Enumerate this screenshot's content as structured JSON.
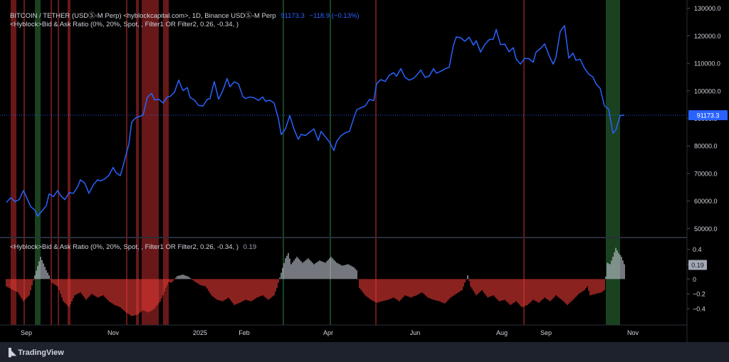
{
  "legend": {
    "main_title": "BITCOIN / TETHER (USDⓈ-M Perp) <hyblockcapital.com>, 1D, Binance USDⓈ-M Perp",
    "main_close": "91173.3",
    "main_change": "−118.9 (−0.13%)",
    "overlay_label": "<Hyblock>Bid & Ask Ratio (0%, 20%, Spot, , Filter1 OR Filter2, 0.26, -0.34, )",
    "indicator_label": "<Hyblock>Bid & Ask Ratio (0%, 20%, Spot, , Filter1 OR Filter2, 0.26, -0.34, )",
    "indicator_value": "0.19"
  },
  "footer": {
    "brand": "TradingView"
  },
  "colors": {
    "price_line": "#2962ff",
    "positive_bar": "#c2c6d0",
    "negative_bar": "#e53935",
    "red_zone": "#7a1c1c",
    "green_zone": "#1f4d26",
    "background": "#000000",
    "axis_text": "#d1d4dc"
  },
  "chart_data": [
    {
      "type": "line",
      "name": "BITCOIN / TETHER (USDⓈ-M Perp)",
      "ylim": [
        47000,
        133000
      ],
      "y_ticks": [
        50000,
        60000,
        70000,
        80000,
        90000,
        100000,
        110000,
        120000,
        130000
      ],
      "y_tick_labels": [
        "50000.0",
        "60000.0",
        "70000.0",
        "80000.0",
        "90000.0",
        "100000.0",
        "110000.0",
        "120000.0",
        "130000.0"
      ],
      "x_ticks": [
        {
          "label": "Sep",
          "day": 14
        },
        {
          "label": "Nov",
          "day": 75
        },
        {
          "label": "2025",
          "day": 136
        },
        {
          "label": "Feb",
          "day": 167
        },
        {
          "label": "Apr",
          "day": 226
        },
        {
          "label": "Jun",
          "day": 287
        },
        {
          "label": "Aug",
          "day": 348
        },
        {
          "label": "Sep",
          "day": 379
        },
        {
          "label": "Nov",
          "day": 440
        }
      ],
      "x_range_days": [
        0,
        479
      ],
      "last_value": 91173.3,
      "last_value_label": "91173.3",
      "price_points": [
        [
          0,
          59500
        ],
        [
          3,
          61200
        ],
        [
          6,
          59800
        ],
        [
          9,
          60500
        ],
        [
          12,
          63800
        ],
        [
          14,
          61500
        ],
        [
          17,
          58000
        ],
        [
          20,
          56700
        ],
        [
          22,
          54500
        ],
        [
          25,
          56400
        ],
        [
          28,
          58300
        ],
        [
          30,
          62600
        ],
        [
          33,
          61600
        ],
        [
          36,
          63800
        ],
        [
          38,
          62000
        ],
        [
          41,
          60500
        ],
        [
          44,
          63000
        ],
        [
          47,
          62800
        ],
        [
          50,
          65100
        ],
        [
          52,
          67700
        ],
        [
          55,
          66500
        ],
        [
          58,
          62800
        ],
        [
          61,
          65800
        ],
        [
          64,
          67700
        ],
        [
          66,
          67300
        ],
        [
          69,
          68000
        ],
        [
          72,
          69400
        ],
        [
          75,
          72200
        ],
        [
          77,
          70300
        ],
        [
          80,
          69200
        ],
        [
          83,
          74800
        ],
        [
          86,
          80600
        ],
        [
          88,
          88700
        ],
        [
          91,
          90300
        ],
        [
          93,
          90600
        ],
        [
          96,
          91200
        ],
        [
          99,
          97700
        ],
        [
          102,
          99100
        ],
        [
          104,
          96700
        ],
        [
          107,
          97000
        ],
        [
          110,
          95600
        ],
        [
          113,
          97800
        ],
        [
          115,
          98000
        ],
        [
          118,
          99500
        ],
        [
          121,
          103900
        ],
        [
          124,
          100100
        ],
        [
          127,
          101200
        ],
        [
          129,
          97600
        ],
        [
          132,
          96700
        ],
        [
          135,
          94700
        ],
        [
          138,
          94500
        ],
        [
          141,
          96900
        ],
        [
          143,
          97200
        ],
        [
          146,
          103400
        ],
        [
          149,
          97000
        ],
        [
          152,
          100100
        ],
        [
          155,
          104500
        ],
        [
          157,
          101500
        ],
        [
          160,
          103300
        ],
        [
          163,
          102500
        ],
        [
          166,
          98000
        ],
        [
          168,
          97200
        ],
        [
          171,
          97800
        ],
        [
          174,
          97500
        ],
        [
          177,
          96500
        ],
        [
          180,
          97800
        ],
        [
          182,
          96200
        ],
        [
          185,
          96600
        ],
        [
          188,
          95600
        ],
        [
          191,
          90000
        ],
        [
          193,
          84100
        ],
        [
          196,
          86200
        ],
        [
          199,
          91000
        ],
        [
          202,
          86100
        ],
        [
          205,
          82400
        ],
        [
          207,
          84200
        ],
        [
          210,
          83800
        ],
        [
          213,
          85000
        ],
        [
          216,
          86200
        ],
        [
          219,
          82000
        ],
        [
          221,
          85300
        ],
        [
          224,
          83300
        ],
        [
          227,
          81400
        ],
        [
          230,
          78300
        ],
        [
          232,
          81700
        ],
        [
          235,
          83700
        ],
        [
          238,
          84800
        ],
        [
          241,
          85300
        ],
        [
          244,
          90200
        ],
        [
          246,
          93100
        ],
        [
          249,
          93900
        ],
        [
          252,
          94500
        ],
        [
          255,
          96900
        ],
        [
          258,
          96400
        ],
        [
          260,
          102600
        ],
        [
          263,
          104100
        ],
        [
          266,
          103400
        ],
        [
          269,
          105700
        ],
        [
          272,
          106600
        ],
        [
          274,
          105300
        ],
        [
          277,
          108100
        ],
        [
          280,
          104900
        ],
        [
          283,
          103900
        ],
        [
          286,
          104600
        ],
        [
          288,
          105600
        ],
        [
          291,
          107600
        ],
        [
          294,
          104900
        ],
        [
          297,
          105400
        ],
        [
          300,
          108100
        ],
        [
          302,
          106400
        ],
        [
          305,
          107100
        ],
        [
          308,
          108000
        ],
        [
          311,
          108600
        ],
        [
          314,
          116700
        ],
        [
          316,
          119600
        ],
        [
          319,
          119300
        ],
        [
          322,
          118000
        ],
        [
          325,
          119500
        ],
        [
          328,
          116600
        ],
        [
          330,
          118200
        ],
        [
          333,
          114100
        ],
        [
          336,
          116800
        ],
        [
          339,
          118600
        ],
        [
          342,
          118800
        ],
        [
          344,
          122300
        ],
        [
          347,
          116800
        ],
        [
          350,
          117000
        ],
        [
          353,
          114200
        ],
        [
          356,
          115700
        ],
        [
          358,
          111600
        ],
        [
          361,
          109700
        ],
        [
          364,
          111800
        ],
        [
          367,
          111700
        ],
        [
          370,
          110400
        ],
        [
          372,
          114100
        ],
        [
          375,
          115300
        ],
        [
          378,
          117100
        ],
        [
          381,
          113000
        ],
        [
          384,
          109700
        ],
        [
          386,
          112300
        ],
        [
          389,
          121700
        ],
        [
          392,
          123700
        ],
        [
          395,
          111900
        ],
        [
          398,
          113700
        ],
        [
          400,
          111100
        ],
        [
          403,
          111500
        ],
        [
          406,
          108200
        ],
        [
          409,
          106100
        ],
        [
          412,
          105000
        ],
        [
          414,
          102600
        ],
        [
          417,
          100900
        ],
        [
          420,
          94600
        ],
        [
          423,
          93300
        ],
        [
          426,
          84600
        ],
        [
          428,
          85800
        ],
        [
          431,
          91000
        ],
        [
          433,
          91200
        ],
        [
          434,
          91173
        ]
      ]
    },
    {
      "type": "bar",
      "name": "<Hyblock>Bid & Ask Ratio",
      "ylim": [
        -0.62,
        0.55
      ],
      "y_ticks": [
        0.4,
        0.2,
        0,
        -0.2,
        -0.4
      ],
      "y_tick_labels": [
        "0.4",
        "0.2",
        "0",
        "−0.2",
        "−0.4"
      ],
      "last_value": 0.19,
      "last_value_label": "0.19",
      "ratio_points": [
        [
          0,
          -0.1
        ],
        [
          8,
          -0.18
        ],
        [
          12,
          -0.3
        ],
        [
          16,
          -0.22
        ],
        [
          20,
          0.05
        ],
        [
          24,
          0.3
        ],
        [
          28,
          0.12
        ],
        [
          30,
          0.05
        ],
        [
          32,
          -0.05
        ],
        [
          36,
          -0.1
        ],
        [
          40,
          -0.3
        ],
        [
          44,
          -0.38
        ],
        [
          48,
          -0.22
        ],
        [
          52,
          -0.18
        ],
        [
          56,
          -0.28
        ],
        [
          60,
          -0.2
        ],
        [
          64,
          -0.25
        ],
        [
          68,
          -0.22
        ],
        [
          72,
          -0.3
        ],
        [
          76,
          -0.35
        ],
        [
          80,
          -0.38
        ],
        [
          84,
          -0.45
        ],
        [
          88,
          -0.5
        ],
        [
          92,
          -0.48
        ],
        [
          96,
          -0.42
        ],
        [
          100,
          -0.45
        ],
        [
          104,
          -0.4
        ],
        [
          108,
          -0.3
        ],
        [
          110,
          -0.22
        ],
        [
          112,
          -0.12
        ],
        [
          114,
          -0.04
        ],
        [
          116,
          -0.05
        ],
        [
          120,
          0.04
        ],
        [
          124,
          0.06
        ],
        [
          128,
          0.03
        ],
        [
          132,
          -0.03
        ],
        [
          136,
          -0.08
        ],
        [
          140,
          -0.1
        ],
        [
          144,
          -0.22
        ],
        [
          148,
          -0.28
        ],
        [
          152,
          -0.3
        ],
        [
          156,
          -0.25
        ],
        [
          160,
          -0.35
        ],
        [
          164,
          -0.32
        ],
        [
          168,
          -0.28
        ],
        [
          172,
          -0.3
        ],
        [
          176,
          -0.25
        ],
        [
          180,
          -0.22
        ],
        [
          184,
          -0.28
        ],
        [
          188,
          -0.22
        ],
        [
          190,
          -0.12
        ],
        [
          192,
          0.02
        ],
        [
          194,
          0.15
        ],
        [
          196,
          0.28
        ],
        [
          198,
          0.35
        ],
        [
          200,
          0.2
        ],
        [
          204,
          0.3
        ],
        [
          208,
          0.22
        ],
        [
          212,
          0.28
        ],
        [
          216,
          0.2
        ],
        [
          220,
          0.25
        ],
        [
          224,
          0.22
        ],
        [
          228,
          0.3
        ],
        [
          232,
          0.22
        ],
        [
          236,
          0.18
        ],
        [
          240,
          0.2
        ],
        [
          244,
          0.16
        ],
        [
          246,
          0.12
        ],
        [
          248,
          -0.12
        ],
        [
          252,
          -0.22
        ],
        [
          256,
          -0.28
        ],
        [
          260,
          -0.32
        ],
        [
          264,
          -0.3
        ],
        [
          268,
          -0.28
        ],
        [
          272,
          -0.25
        ],
        [
          276,
          -0.3
        ],
        [
          280,
          -0.22
        ],
        [
          284,
          -0.25
        ],
        [
          288,
          -0.22
        ],
        [
          292,
          -0.18
        ],
        [
          296,
          -0.25
        ],
        [
          300,
          -0.28
        ],
        [
          304,
          -0.3
        ],
        [
          308,
          -0.33
        ],
        [
          312,
          -0.25
        ],
        [
          316,
          -0.2
        ],
        [
          320,
          -0.15
        ],
        [
          324,
          0.05
        ],
        [
          326,
          -0.1
        ],
        [
          330,
          -0.22
        ],
        [
          334,
          -0.15
        ],
        [
          338,
          -0.25
        ],
        [
          342,
          -0.22
        ],
        [
          346,
          -0.3
        ],
        [
          350,
          -0.28
        ],
        [
          354,
          -0.35
        ],
        [
          358,
          -0.3
        ],
        [
          362,
          -0.38
        ],
        [
          366,
          -0.35
        ],
        [
          370,
          -0.28
        ],
        [
          374,
          -0.32
        ],
        [
          378,
          -0.25
        ],
        [
          382,
          -0.3
        ],
        [
          386,
          -0.22
        ],
        [
          390,
          -0.28
        ],
        [
          394,
          -0.35
        ],
        [
          398,
          -0.28
        ],
        [
          402,
          -0.2
        ],
        [
          406,
          -0.15
        ],
        [
          408,
          -0.1
        ],
        [
          410,
          -0.22
        ],
        [
          414,
          -0.2
        ],
        [
          418,
          -0.18
        ],
        [
          420,
          -0.15
        ],
        [
          422,
          0.22
        ],
        [
          424,
          0.2
        ],
        [
          426,
          0.3
        ],
        [
          428,
          0.42
        ],
        [
          430,
          0.35
        ],
        [
          432,
          0.3
        ],
        [
          434,
          0.2
        ]
      ]
    }
  ],
  "highlight_zones": [
    {
      "type": "red",
      "start_day": 3,
      "end_day": 7
    },
    {
      "type": "red",
      "start_day": 12,
      "end_day": 13
    },
    {
      "type": "green",
      "start_day": 20,
      "end_day": 24
    },
    {
      "type": "red",
      "start_day": 31,
      "end_day": 32
    },
    {
      "type": "red",
      "start_day": 36,
      "end_day": 37
    },
    {
      "type": "red",
      "start_day": 43,
      "end_day": 45
    },
    {
      "type": "red",
      "start_day": 84,
      "end_day": 85
    },
    {
      "type": "red",
      "start_day": 91,
      "end_day": 93
    },
    {
      "type": "red",
      "start_day": 95,
      "end_day": 107
    },
    {
      "type": "red",
      "start_day": 110,
      "end_day": 114
    },
    {
      "type": "green",
      "start_day": 194,
      "end_day": 195
    },
    {
      "type": "green",
      "start_day": 227,
      "end_day": 228
    },
    {
      "type": "red",
      "start_day": 259,
      "end_day": 260
    },
    {
      "type": "red",
      "start_day": 363,
      "end_day": 364
    },
    {
      "type": "green",
      "start_day": 421,
      "end_day": 431
    }
  ]
}
